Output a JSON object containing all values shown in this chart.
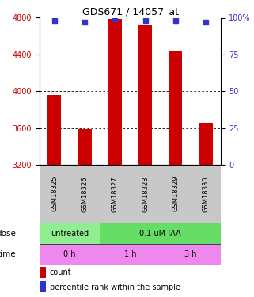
{
  "title": "GDS671 / 14057_at",
  "samples": [
    "GSM18325",
    "GSM18326",
    "GSM18327",
    "GSM18328",
    "GSM18329",
    "GSM18330"
  ],
  "count_values": [
    3960,
    3590,
    4790,
    4720,
    4430,
    3660
  ],
  "percentile_values": [
    98,
    97,
    99,
    98,
    98,
    97
  ],
  "ylim_left": [
    3200,
    4800
  ],
  "ylim_right": [
    0,
    100
  ],
  "yticks_left": [
    3200,
    3600,
    4000,
    4400,
    4800
  ],
  "yticks_right": [
    0,
    25,
    50,
    75,
    100
  ],
  "bar_color": "#cc0000",
  "dot_color": "#3333cc",
  "grid_color": "#000000",
  "dose_labels": [
    {
      "label": "untreated",
      "span": [
        0,
        2
      ],
      "color": "#90ee90"
    },
    {
      "label": "0.1 uM IAA",
      "span": [
        2,
        6
      ],
      "color": "#66dd66"
    }
  ],
  "time_labels": [
    {
      "label": "0 h",
      "span": [
        0,
        2
      ],
      "color": "#ee88ee"
    },
    {
      "label": "1 h",
      "span": [
        2,
        4
      ],
      "color": "#ee88ee"
    },
    {
      "label": "3 h",
      "span": [
        4,
        6
      ],
      "color": "#ee88ee"
    }
  ],
  "dose_row_label": "dose",
  "time_row_label": "time",
  "legend_count_label": "count",
  "legend_pct_label": "percentile rank within the sample",
  "sample_label_fontsize": 6.0,
  "yticklabel_left_color": "#cc0000",
  "yticklabel_right_color": "#3333cc",
  "title_fontsize": 9,
  "bar_width": 0.45,
  "background_color": "#ffffff",
  "label_bg": "#c8c8c8"
}
